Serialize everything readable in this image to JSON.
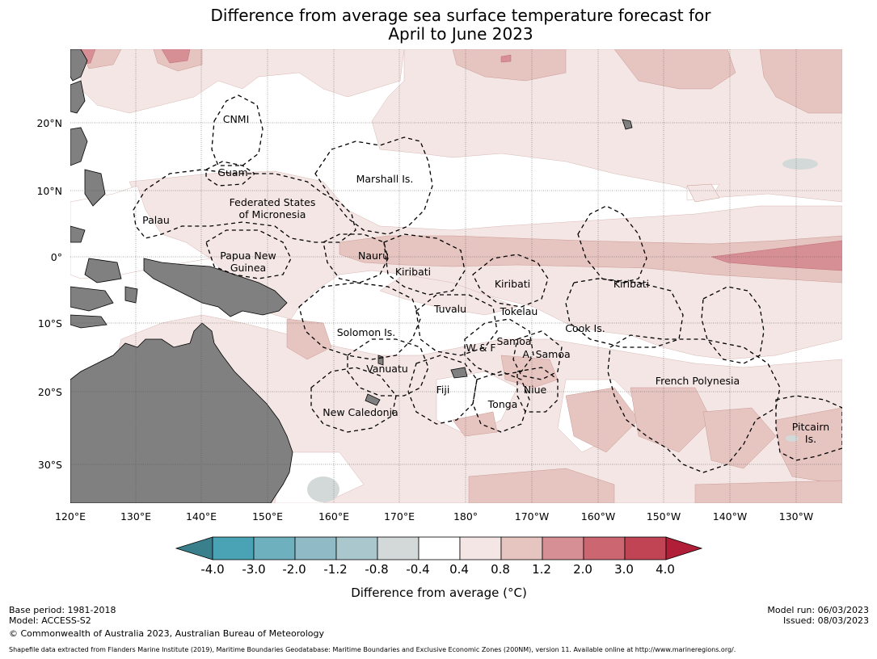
{
  "title": {
    "line1": "Difference from average sea surface temperature forecast for",
    "line2": "April to June 2023"
  },
  "axes": {
    "lat_labels": [
      "20°N",
      "10°N",
      "0°",
      "10°S",
      "20°S",
      "30°S"
    ],
    "lon_labels": [
      "120°E",
      "130°E",
      "140°E",
      "150°E",
      "160°E",
      "170°E",
      "180°",
      "170°W",
      "160°W",
      "150°W",
      "140°W",
      "130°W"
    ]
  },
  "regions": [
    {
      "name": "CNMI"
    },
    {
      "name": "Guam"
    },
    {
      "name": "Marshall Is."
    },
    {
      "name": "Federated States"
    },
    {
      "name": "of Micronesia"
    },
    {
      "name": "Palau"
    },
    {
      "name": "Papua New"
    },
    {
      "name": "Guinea"
    },
    {
      "name": "Nauru"
    },
    {
      "name": "Kiribati"
    },
    {
      "name": "Kiribati"
    },
    {
      "name": "Kiribati"
    },
    {
      "name": "Tuvalu"
    },
    {
      "name": "Tokelau"
    },
    {
      "name": "Solomon Is."
    },
    {
      "name": "Samoa"
    },
    {
      "name": "W & F"
    },
    {
      "name": "A. Samoa"
    },
    {
      "name": "Cook Is."
    },
    {
      "name": "Vanuatu"
    },
    {
      "name": "Fiji"
    },
    {
      "name": "Niue"
    },
    {
      "name": "French Polynesia"
    },
    {
      "name": "Tonga"
    },
    {
      "name": "New Caledonia"
    },
    {
      "name": "Pitcairn"
    },
    {
      "name": "Is."
    }
  ],
  "colorbar": {
    "ticks": [
      "-4.0",
      "-3.0",
      "-2.0",
      "-1.2",
      "-0.8",
      "-0.4",
      "0.4",
      "0.8",
      "1.2",
      "2.0",
      "3.0",
      "4.0"
    ],
    "colors": [
      "#3a7f8c",
      "#4aa3b4",
      "#6fb0bf",
      "#8fbac6",
      "#aac7cd",
      "#d3d9d9",
      "#ffffff",
      "#f4e6e4",
      "#e6c5c1",
      "#d68f95",
      "#cc6670",
      "#c04454",
      "#b01e38"
    ],
    "label": "Difference from average (°C)"
  },
  "footer": {
    "base_period": "Base period: 1981-2018",
    "model": "Model: ACCESS-S2",
    "copyright": "© Commonwealth of Australia 2023, Australian Bureau of Meteorology",
    "model_run": "Model run: 06/03/2023",
    "issued": "Issued: 08/03/2023",
    "shapefile": "Shapefile data extracted from Flanders Marine Institute (2019), Maritime Boundaries Geodatabase: Maritime Boundaries and Exclusive Economic Zones (200NM), version 11. Available online at http://www.marineregions.org/."
  },
  "colors": {
    "land": "#808080",
    "warm_light": "#f4e6e4",
    "warm_mid": "#e6c5c1",
    "warm_strong": "#d68f95",
    "cool_light": "#d3d9d9"
  }
}
